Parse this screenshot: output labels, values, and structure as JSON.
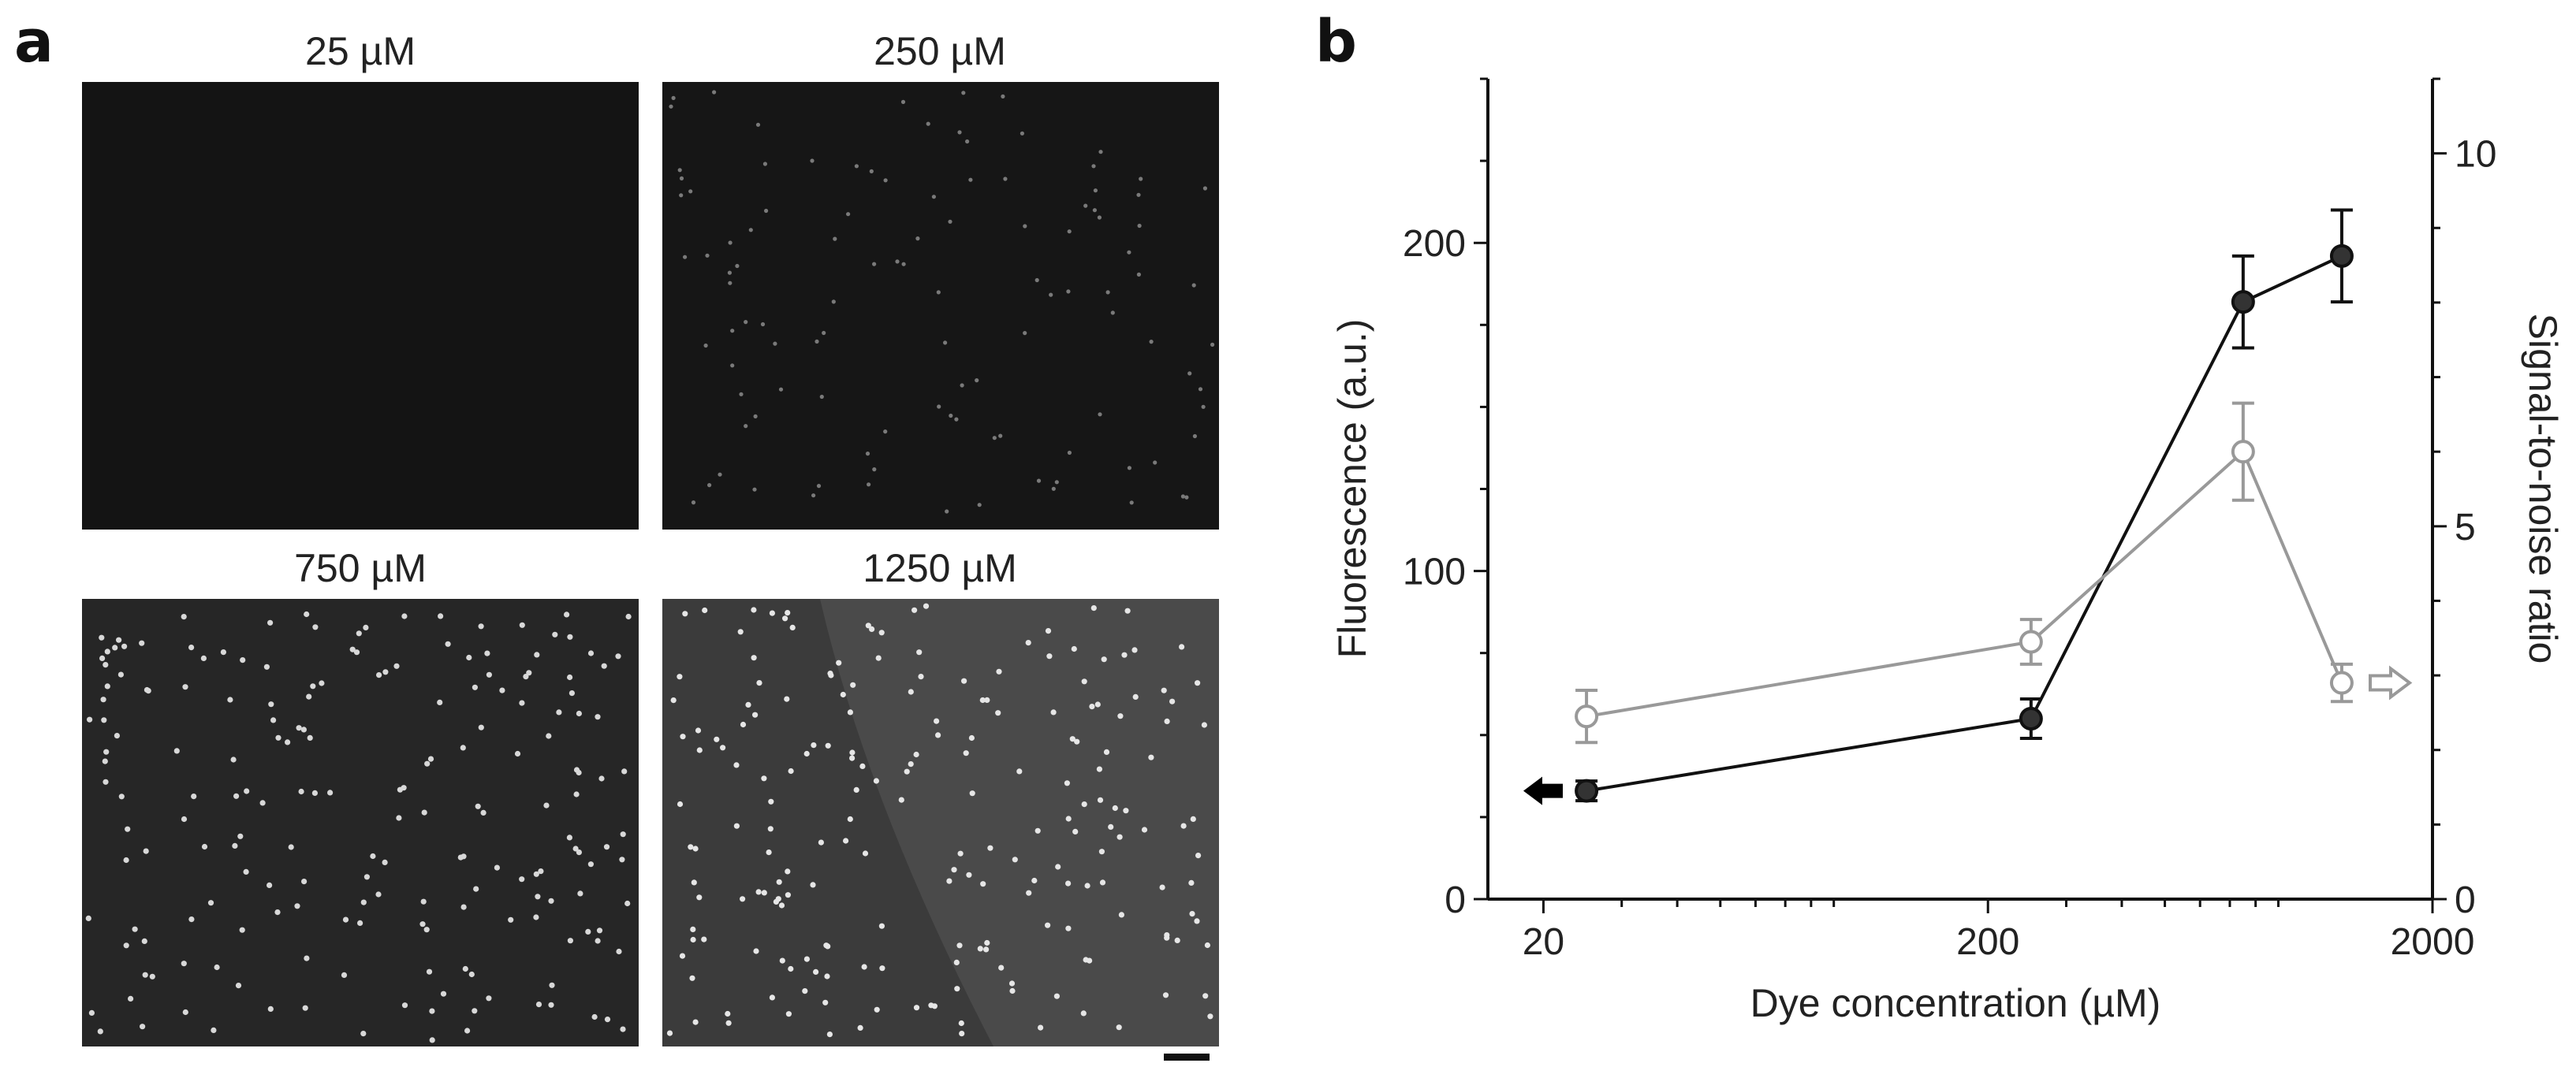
{
  "panel_a": {
    "letter": "a",
    "images": [
      {
        "title": "25 µM",
        "background": "#141414",
        "spot_count": 0,
        "spot_color": "#8a8a8a"
      },
      {
        "title": "250 µM",
        "background": "#161616",
        "spot_count": 110,
        "spot_color": "#7a7a7a"
      },
      {
        "title": "750 µM",
        "background": "#262626",
        "spot_count": 190,
        "spot_color": "#d8d8d8"
      },
      {
        "title": "1250 µM",
        "background": "#4a4a4a",
        "spot_count": 200,
        "spot_color": "#e6e6e6"
      }
    ]
  },
  "panel_b": {
    "letter": "b"
  },
  "chart_data": {
    "type": "line",
    "xscale": "log",
    "xlabel": "Dye concentration (µM)",
    "ylabel": "Fluorescence (a.u.)",
    "y2label": "Signal-to-noise ratio",
    "xlim": [
      15,
      2000
    ],
    "ylim": [
      0,
      250
    ],
    "y2lim": [
      0,
      11
    ],
    "xticks": [
      20,
      200,
      2000
    ],
    "yticks": [
      0,
      100,
      200
    ],
    "y2ticks": [
      0,
      5,
      10
    ],
    "grid": false,
    "series": [
      {
        "axis": "left",
        "color": "#111111",
        "marker": "filled-circle",
        "x": [
          25,
          250,
          750,
          1250
        ],
        "y": [
          33,
          55,
          182,
          196
        ],
        "err": [
          3,
          6,
          14,
          14
        ]
      },
      {
        "axis": "right",
        "color": "#999999",
        "marker": "open-circle",
        "x": [
          25,
          250,
          750,
          1250
        ],
        "y": [
          2.45,
          3.45,
          6.0,
          2.9
        ],
        "err": [
          0.35,
          0.3,
          0.65,
          0.25
        ]
      }
    ]
  }
}
